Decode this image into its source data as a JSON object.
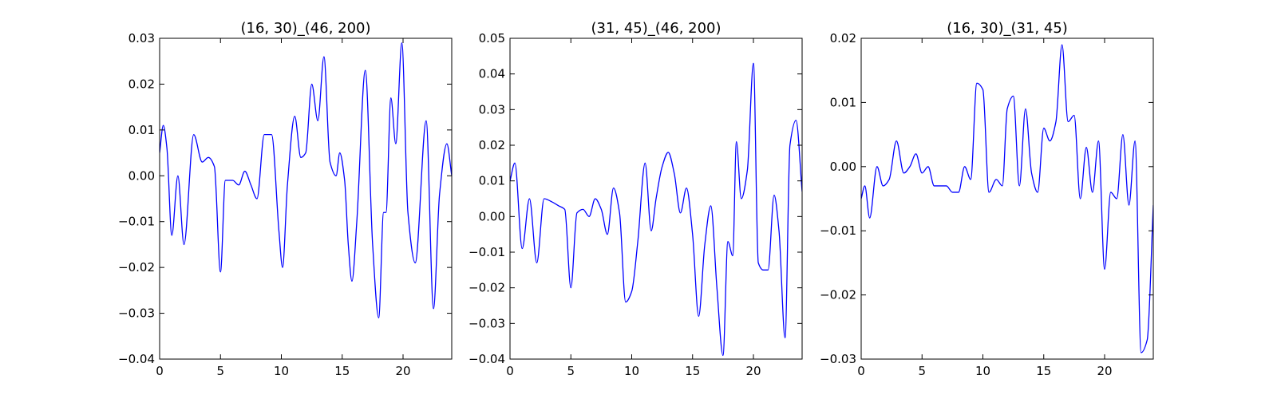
{
  "figure": {
    "background": "#ffffff",
    "line_color": "#0000ff",
    "frame_color": "#000000"
  },
  "chart_data": [
    {
      "type": "line",
      "title": "(16, 30)_(46, 200)",
      "xlabel": "",
      "ylabel": "",
      "xlim": [
        0,
        24
      ],
      "ylim": [
        -0.04,
        0.03
      ],
      "xticks": [
        0,
        5,
        10,
        15,
        20
      ],
      "xtick_labels": [
        "0",
        "5",
        "10",
        "15",
        "20"
      ],
      "yticks": [
        -0.04,
        -0.03,
        -0.02,
        -0.01,
        0.0,
        0.01,
        0.02,
        0.03
      ],
      "ytick_labels": [
        "−0.04",
        "−0.03",
        "−0.02",
        "−0.01",
        "0.00",
        "0.01",
        "0.02",
        "0.03"
      ],
      "grid": false,
      "series": [
        {
          "color": "#0000ff",
          "x": [
            0,
            0.3,
            0.6,
            1.0,
            1.5,
            2.0,
            2.8,
            3.5,
            4.0,
            4.5,
            5.0,
            5.4,
            6.0,
            6.5,
            7.0,
            7.5,
            8.0,
            8.6,
            9.2,
            9.8,
            10.1,
            10.5,
            11.1,
            11.6,
            12.0,
            12.5,
            13.0,
            13.5,
            14.0,
            14.5,
            14.8,
            15.2,
            15.5,
            15.8,
            16.2,
            16.9,
            17.5,
            18.0,
            18.4,
            18.6,
            19.0,
            19.4,
            19.9,
            20.4,
            21.0,
            21.9,
            22.5,
            23.0,
            23.6,
            24.0
          ],
          "y": [
            0.005,
            0.011,
            0.006,
            -0.013,
            0.0,
            -0.015,
            0.009,
            0.003,
            0.004,
            0.002,
            -0.021,
            -0.001,
            -0.001,
            -0.002,
            0.001,
            -0.002,
            -0.005,
            0.009,
            0.009,
            -0.012,
            -0.02,
            -0.002,
            0.013,
            0.004,
            0.005,
            0.02,
            0.012,
            0.026,
            0.003,
            0.0,
            0.005,
            -0.001,
            -0.015,
            -0.023,
            -0.01,
            0.023,
            -0.015,
            -0.031,
            -0.008,
            -0.008,
            0.017,
            0.007,
            0.029,
            -0.008,
            -0.019,
            0.012,
            -0.029,
            -0.004,
            0.007,
            0.0
          ]
        }
      ]
    },
    {
      "type": "line",
      "title": "(31, 45)_(46, 200)",
      "xlabel": "",
      "ylabel": "",
      "xlim": [
        0,
        24
      ],
      "ylim": [
        -0.04,
        0.05
      ],
      "xticks": [
        0,
        5,
        10,
        15,
        20
      ],
      "xtick_labels": [
        "0",
        "5",
        "10",
        "15",
        "20"
      ],
      "yticks": [
        -0.04,
        -0.03,
        -0.02,
        -0.01,
        0.0,
        0.01,
        0.02,
        0.03,
        0.04,
        0.05
      ],
      "ytick_labels": [
        "−0.04",
        "−0.03",
        "−0.02",
        "−0.01",
        "0.00",
        "0.01",
        "0.02",
        "0.03",
        "0.04",
        "0.05"
      ],
      "grid": false,
      "series": [
        {
          "color": "#0000ff",
          "x": [
            0,
            0.4,
            1.0,
            1.6,
            2.2,
            2.8,
            3.5,
            4.0,
            4.5,
            5.0,
            5.5,
            6.0,
            6.5,
            7.0,
            7.5,
            8.0,
            8.5,
            9.0,
            9.5,
            10.0,
            10.5,
            11.1,
            11.6,
            12.0,
            12.5,
            13.0,
            13.5,
            14.0,
            14.5,
            15.0,
            15.5,
            16.0,
            16.5,
            17.0,
            17.5,
            17.9,
            18.3,
            18.6,
            19.0,
            19.5,
            20.0,
            20.4,
            20.8,
            21.2,
            21.7,
            22.1,
            22.6,
            23.0,
            23.5,
            24.0
          ],
          "y": [
            0.01,
            0.015,
            -0.009,
            0.005,
            -0.013,
            0.005,
            0.004,
            0.003,
            0.002,
            -0.02,
            0.001,
            0.002,
            0.0,
            0.005,
            0.002,
            -0.005,
            0.008,
            0.001,
            -0.024,
            -0.021,
            -0.007,
            0.015,
            -0.004,
            0.005,
            0.014,
            0.018,
            0.012,
            0.001,
            0.008,
            -0.005,
            -0.028,
            -0.008,
            0.003,
            -0.02,
            -0.039,
            -0.007,
            -0.011,
            0.021,
            0.005,
            0.013,
            0.043,
            -0.013,
            -0.015,
            -0.015,
            0.006,
            -0.004,
            -0.034,
            0.02,
            0.027,
            0.007
          ]
        }
      ]
    },
    {
      "type": "line",
      "title": "(16, 30)_(31, 45)",
      "xlabel": "",
      "ylabel": "",
      "xlim": [
        0,
        24
      ],
      "ylim": [
        -0.03,
        0.02
      ],
      "xticks": [
        0,
        5,
        10,
        15,
        20
      ],
      "xtick_labels": [
        "0",
        "5",
        "10",
        "15",
        "20"
      ],
      "yticks": [
        -0.03,
        -0.02,
        -0.01,
        0.0,
        0.01,
        0.02
      ],
      "ytick_labels": [
        "−0.03",
        "−0.02",
        "−0.01",
        "0.00",
        "0.01",
        "0.02"
      ],
      "grid": false,
      "series": [
        {
          "color": "#0000ff",
          "x": [
            0,
            0.3,
            0.7,
            1.3,
            1.8,
            2.3,
            2.9,
            3.5,
            4.0,
            4.5,
            5.0,
            5.5,
            6.0,
            6.5,
            7.0,
            7.5,
            8.0,
            8.5,
            9.0,
            9.5,
            10.0,
            10.5,
            11.1,
            11.6,
            12.0,
            12.5,
            13.0,
            13.5,
            14.0,
            14.5,
            15.0,
            15.5,
            16.0,
            16.5,
            17.0,
            17.5,
            18.0,
            18.5,
            19.0,
            19.5,
            20.0,
            20.5,
            21.0,
            21.5,
            22.0,
            22.5,
            23.0,
            23.5,
            24.0
          ],
          "y": [
            -0.005,
            -0.003,
            -0.008,
            0.0,
            -0.003,
            -0.002,
            0.004,
            -0.001,
            0.0,
            0.002,
            -0.001,
            0.0,
            -0.003,
            -0.003,
            -0.003,
            -0.004,
            -0.004,
            0.0,
            -0.002,
            0.013,
            0.012,
            -0.004,
            -0.002,
            -0.003,
            0.009,
            0.011,
            -0.003,
            0.009,
            -0.001,
            -0.004,
            0.006,
            0.004,
            0.007,
            0.019,
            0.007,
            0.008,
            -0.005,
            0.003,
            -0.004,
            0.004,
            -0.016,
            -0.004,
            -0.005,
            0.005,
            -0.006,
            0.004,
            -0.029,
            -0.027,
            -0.006
          ]
        }
      ]
    }
  ]
}
